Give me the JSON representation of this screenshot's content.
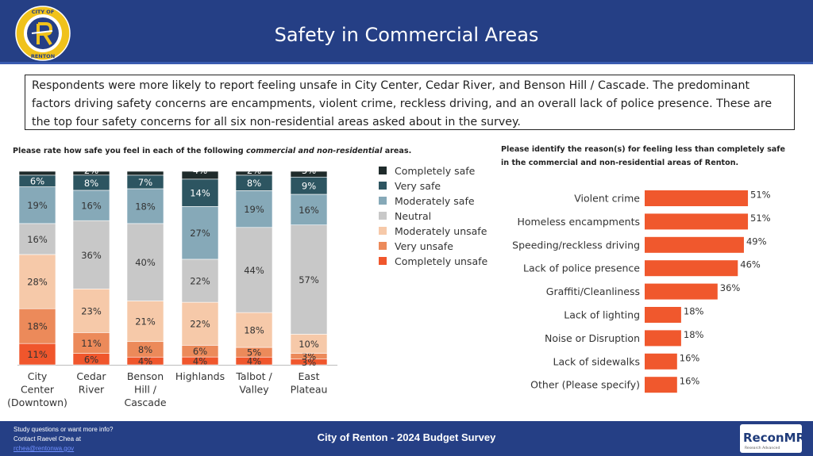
{
  "header": {
    "title": "Safety in Commercial Areas",
    "logo_text_top": "CITY OF",
    "logo_text_bottom": "RENTON"
  },
  "summary": "Respondents were more likely to report feeling unsafe in City Center, Cedar River, and Benson Hill / Cascade. The predominant factors driving safety concerns are encampments, violent crime, reckless driving, and an overall lack of police presence. These are the top four safety concerns for all six non-residential areas asked about in the survey.",
  "left_title": {
    "before": "Please rate how safe you feel in each of the following ",
    "italic": "commercial and non-residential",
    "after": " areas."
  },
  "right_title": "Please identify the reason(s) for feeling less than completely safe in the commercial and non-residential areas of Renton.",
  "footer": {
    "left_line1": "Study questions or want more info?",
    "left_line2": "Contact Raevel Chea at",
    "left_link": "rchea@rentonwa.gov",
    "center": "City of Renton - 2024 Budget Survey",
    "brand": "ReconMR",
    "brand_sub": "Research Advanced"
  },
  "colors": {
    "header_bg": "#253f85",
    "Completely safe": "#1f2b2b",
    "Very safe": "#2d5561",
    "Moderately safe": "#86a9b8",
    "Neutral": "#c8c8c8",
    "Moderately unsafe": "#f6c9a9",
    "Very unsafe": "#ec8a5a",
    "Completely unsafe": "#f0562c",
    "bar_orange": "#f0582d"
  },
  "chart_data": [
    {
      "type": "bar",
      "stacked": true,
      "categories": [
        "City Center (Downtown)",
        "Cedar River",
        "Benson Hill / Cascade",
        "Highlands",
        "Talbot / Valley",
        "East Plateau"
      ],
      "category_lines": [
        [
          "City",
          "Center",
          "(Downtown)"
        ],
        [
          "Cedar",
          "River"
        ],
        [
          "Benson",
          "Hill /",
          "Cascade"
        ],
        [
          "Highlands"
        ],
        [
          "Talbot /",
          "Valley"
        ],
        [
          "East",
          "Plateau"
        ]
      ],
      "series": [
        {
          "name": "Completely unsafe",
          "values": [
            11,
            6,
            4,
            4,
            4,
            3
          ]
        },
        {
          "name": "Very unsafe",
          "values": [
            18,
            11,
            8,
            6,
            5,
            3
          ]
        },
        {
          "name": "Moderately unsafe",
          "values": [
            28,
            23,
            21,
            22,
            18,
            10
          ]
        },
        {
          "name": "Neutral",
          "values": [
            16,
            36,
            40,
            22,
            44,
            57
          ]
        },
        {
          "name": "Moderately safe",
          "values": [
            19,
            16,
            18,
            27,
            19,
            16
          ]
        },
        {
          "name": "Very safe",
          "values": [
            6,
            8,
            7,
            14,
            8,
            9
          ]
        },
        {
          "name": "Completely safe",
          "values": [
            2,
            2,
            2,
            4,
            2,
            3
          ]
        }
      ],
      "value_labels": [
        [
          "11%",
          "6%",
          "4%",
          "4%",
          "4%",
          "3%"
        ],
        [
          "18%",
          "11%",
          "8%",
          "6%",
          "5%",
          "3%"
        ],
        [
          "28%",
          "23%",
          "21%",
          "22%",
          "18%",
          "10%"
        ],
        [
          "16%",
          "36%",
          "40%",
          "22%",
          "44%",
          "57%"
        ],
        [
          "19%",
          "16%",
          "18%",
          "27%",
          "19%",
          "16%"
        ],
        [
          "6%",
          "8%",
          "7%",
          "14%",
          "8%",
          "9%"
        ],
        [
          "",
          "2%",
          "",
          "4%",
          "2%",
          "3%"
        ]
      ],
      "legend_order": [
        "Completely safe",
        "Very safe",
        "Moderately safe",
        "Neutral",
        "Moderately unsafe",
        "Very unsafe",
        "Completely unsafe"
      ],
      "legend_position": "right",
      "ylim": [
        0,
        100
      ],
      "grid": false
    },
    {
      "type": "bar",
      "orientation": "horizontal",
      "categories": [
        "Violent crime",
        "Homeless encampments",
        "Speeding/reckless driving",
        "Lack of police presence",
        "Graffiti/Cleanliness",
        "Lack of lighting",
        "Noise or Disruption",
        "Lack of sidewalks",
        "Other (Please specify)"
      ],
      "values": [
        51,
        51,
        49,
        46,
        36,
        18,
        18,
        16,
        16
      ],
      "value_labels": [
        "51%",
        "51%",
        "49%",
        "46%",
        "36%",
        "18%",
        "18%",
        "16%",
        "16%"
      ],
      "xlim": [
        0,
        100
      ],
      "grid": false
    }
  ]
}
